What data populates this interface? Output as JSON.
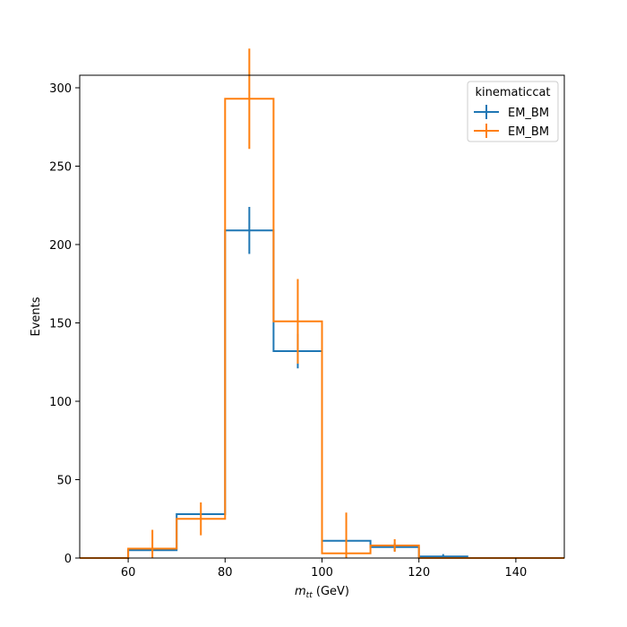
{
  "chart_data": {
    "type": "histogram",
    "xlabel": "m_tt (GeV)",
    "xlabel_base": "m",
    "xlabel_sub": "tt",
    "xlabel_unit": " (GeV)",
    "ylabel": "Events",
    "xlim": [
      50,
      150
    ],
    "ylim": [
      0,
      308
    ],
    "xticks": [
      60,
      80,
      100,
      120,
      140
    ],
    "yticks": [
      0,
      50,
      100,
      150,
      200,
      250,
      300
    ],
    "bin_edges": [
      50,
      60,
      70,
      80,
      90,
      100,
      110,
      120,
      130,
      140,
      150
    ],
    "legend": {
      "title": "kinematiccat",
      "placement": "top-right"
    },
    "series": [
      {
        "name": "EM_BM",
        "color": "#1f77b4",
        "values": [
          0,
          5,
          28,
          209,
          132,
          11,
          7,
          1,
          0,
          0
        ],
        "errors": [
          0,
          0,
          0,
          15,
          11,
          0,
          2.6,
          1.5,
          0,
          0
        ]
      },
      {
        "name": "EM_BM",
        "color": "#ff7f0e",
        "values": [
          0,
          6,
          25,
          293,
          151,
          3,
          8,
          0,
          0,
          0
        ],
        "errors": [
          0,
          12,
          10.5,
          32,
          27,
          26,
          4,
          0,
          0,
          0
        ]
      }
    ]
  }
}
